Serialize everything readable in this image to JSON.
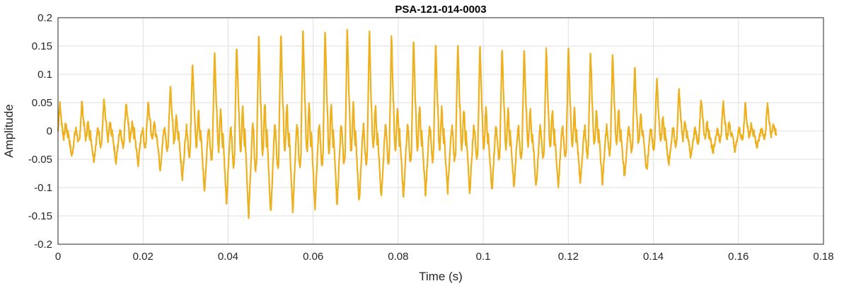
{
  "chart_data": {
    "type": "line",
    "title": "PSA-121-014-0003",
    "xlabel": "Time (s)",
    "ylabel": "Amplitude",
    "xlim": [
      0,
      0.18
    ],
    "ylim": [
      -0.2,
      0.2
    ],
    "xticks": [
      0,
      0.02,
      0.04,
      0.06,
      0.08,
      0.1,
      0.12,
      0.14,
      0.16,
      0.18
    ],
    "xtick_labels": [
      "0",
      "0.02",
      "0.04",
      "0.06",
      "0.08",
      "0.1",
      "0.12",
      "0.14",
      "0.16",
      "0.18"
    ],
    "yticks": [
      -0.2,
      -0.15,
      -0.1,
      -0.05,
      0,
      0.05,
      0.1,
      0.15,
      0.2
    ],
    "ytick_labels": [
      "-0.2",
      "-0.15",
      "-0.1",
      "-0.05",
      "0",
      "0.05",
      "0.1",
      "0.15",
      "0.2"
    ],
    "grid": true,
    "line_color": "#EDB120",
    "series": [
      {
        "envelope": {
          "t": [
            0,
            0.01,
            0.02,
            0.025,
            0.03,
            0.035,
            0.04,
            0.045,
            0.05,
            0.055,
            0.06,
            0.065,
            0.07,
            0.075,
            0.08,
            0.09,
            0.1,
            0.11,
            0.12,
            0.13,
            0.14,
            0.15,
            0.16,
            0.169
          ],
          "pos": [
            0.05,
            0.055,
            0.05,
            0.07,
            0.12,
            0.14,
            0.15,
            0.17,
            0.18,
            0.18,
            0.19,
            0.18,
            0.19,
            0.18,
            0.17,
            0.16,
            0.155,
            0.15,
            0.15,
            0.145,
            0.1,
            0.06,
            0.05,
            0.05
          ],
          "neg": [
            -0.04,
            -0.055,
            -0.06,
            -0.07,
            -0.09,
            -0.11,
            -0.13,
            -0.155,
            -0.15,
            -0.145,
            -0.14,
            -0.13,
            -0.13,
            -0.12,
            -0.12,
            -0.11,
            -0.11,
            -0.1,
            -0.1,
            -0.09,
            -0.07,
            -0.045,
            -0.035,
            -0.02
          ]
        },
        "period_s": 0.0052,
        "t_end": 0.169
      }
    ]
  }
}
